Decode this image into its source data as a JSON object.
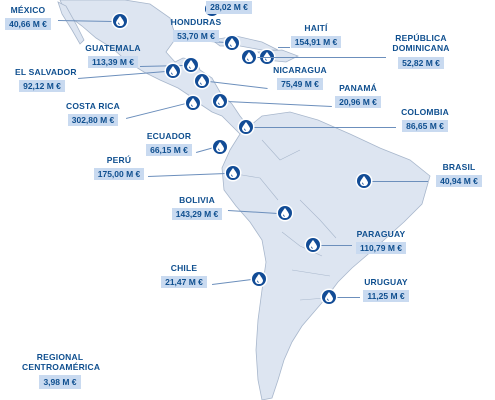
{
  "colors": {
    "land": "#dde5f1",
    "land_stroke": "#a8b7cc",
    "pin": "#124c96",
    "label_text": "#0f4f8f",
    "label_bg": "#c9daf0"
  },
  "markers": [
    {
      "id": "mexico",
      "country": "MÉXICO",
      "amount": "40,66 M €",
      "icon": "water-drop-icon"
    },
    {
      "id": "belice",
      "country": "",
      "amount": "28,02 M €",
      "icon": "water-drop-icon"
    },
    {
      "id": "honduras",
      "country": "HONDURAS",
      "amount": "53,70 M €",
      "icon": "water-drop-icon"
    },
    {
      "id": "haiti",
      "country": "HAITÍ",
      "amount": "154,91 M €",
      "icon": "water-drop-icon"
    },
    {
      "id": "dominicana",
      "country": "REPÚBLICA DOMINICANA",
      "amount": "52,82 M €",
      "icon": "water-drop-icon"
    },
    {
      "id": "guatemala",
      "country": "GUATEMALA",
      "amount": "113,39 M €",
      "icon": "water-drop-icon"
    },
    {
      "id": "elsalvador",
      "country": "EL SALVADOR",
      "amount": "92,12 M €",
      "icon": "water-drop-icon"
    },
    {
      "id": "nicaragua",
      "country": "NICARAGUA",
      "amount": "75,49 M €",
      "icon": "water-drop-icon"
    },
    {
      "id": "costarica",
      "country": "COSTA RICA",
      "amount": "302,80 M €",
      "icon": "water-drop-icon"
    },
    {
      "id": "panama",
      "country": "PANAMÁ",
      "amount": "20,96 M €",
      "icon": "water-drop-icon"
    },
    {
      "id": "colombia",
      "country": "COLOMBIA",
      "amount": "86,65 M €",
      "icon": "water-drop-icon"
    },
    {
      "id": "ecuador",
      "country": "ECUADOR",
      "amount": "66,15 M €",
      "icon": "water-drop-icon"
    },
    {
      "id": "peru",
      "country": "PERÚ",
      "amount": "175,00 M €",
      "icon": "water-drop-icon"
    },
    {
      "id": "brasil",
      "country": "BRASIL",
      "amount": "40,94 M €",
      "icon": "water-drop-icon"
    },
    {
      "id": "bolivia",
      "country": "BOLIVIA",
      "amount": "143,29 M €",
      "icon": "water-drop-icon"
    },
    {
      "id": "paraguay",
      "country": "PARAGUAY",
      "amount": "110,79 M €",
      "icon": "water-drop-icon"
    },
    {
      "id": "chile",
      "country": "CHILE",
      "amount": "21,47 M €",
      "icon": "water-drop-icon"
    },
    {
      "id": "uruguay",
      "country": "URUGUAY",
      "amount": "11,25 M €",
      "icon": "water-drop-icon"
    }
  ],
  "regional": {
    "line1": "REGIONAL",
    "line2": "CENTROAMÉRICA",
    "amount": "3,98 M €"
  }
}
